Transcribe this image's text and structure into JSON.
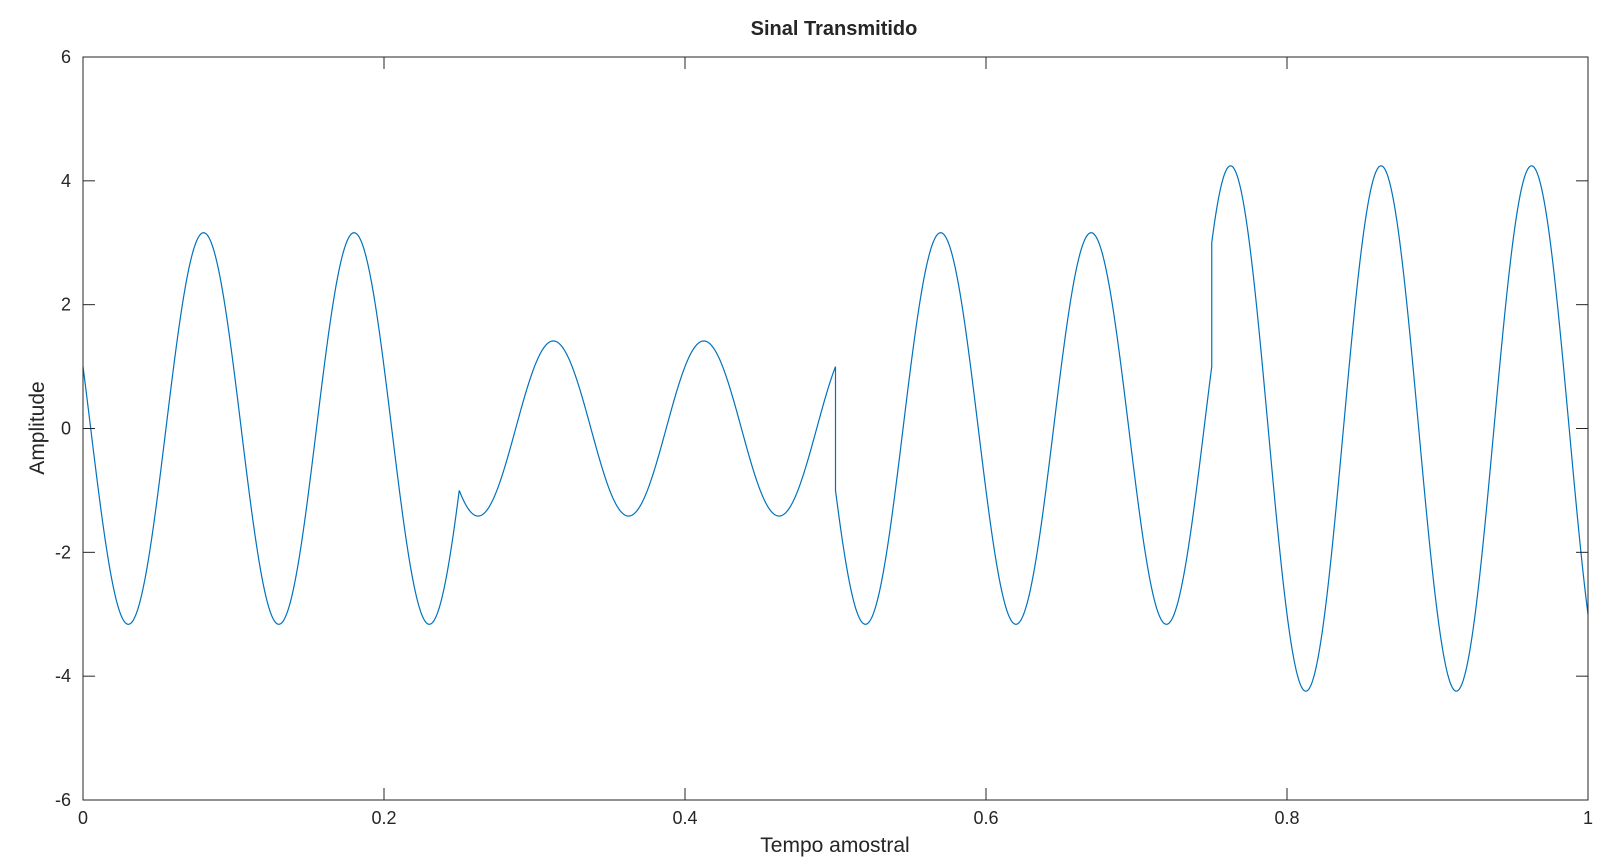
{
  "chart_data": {
    "type": "line",
    "title": "Sinal Transmitido",
    "xlabel": "Tempo amostral",
    "ylabel": "Amplitude",
    "xlim": [
      0,
      1
    ],
    "ylim": [
      -6,
      6
    ],
    "xticks": [
      0,
      0.2,
      0.4,
      0.6,
      0.8,
      1
    ],
    "xtick_labels": [
      "0",
      "0.2",
      "0.4",
      "0.6",
      "0.8",
      "1"
    ],
    "yticks": [
      -6,
      -4,
      -2,
      0,
      2,
      4,
      6
    ],
    "ytick_labels": [
      "-6",
      "-4",
      "-2",
      "0",
      "2",
      "4",
      "6"
    ],
    "grid": false,
    "line_color": "#0072bd",
    "axis_color": "#262626",
    "symbol_period": 0.25,
    "carrier_frequency": 10,
    "symbols": [
      {
        "t_start": 0.0,
        "t_end": 0.25,
        "I": 1,
        "Q": 3
      },
      {
        "t_start": 0.25,
        "t_end": 0.5,
        "I": 1,
        "Q": -1
      },
      {
        "t_start": 0.5,
        "t_end": 0.75,
        "I": -1,
        "Q": 3
      },
      {
        "t_start": 0.75,
        "t_end": 1.0,
        "I": -3,
        "Q": 3
      }
    ],
    "series": [
      {
        "model": "I*cos(2*pi*f*t) - Q*sin(2*pi*f*t)",
        "samples": 2000
      }
    ]
  }
}
